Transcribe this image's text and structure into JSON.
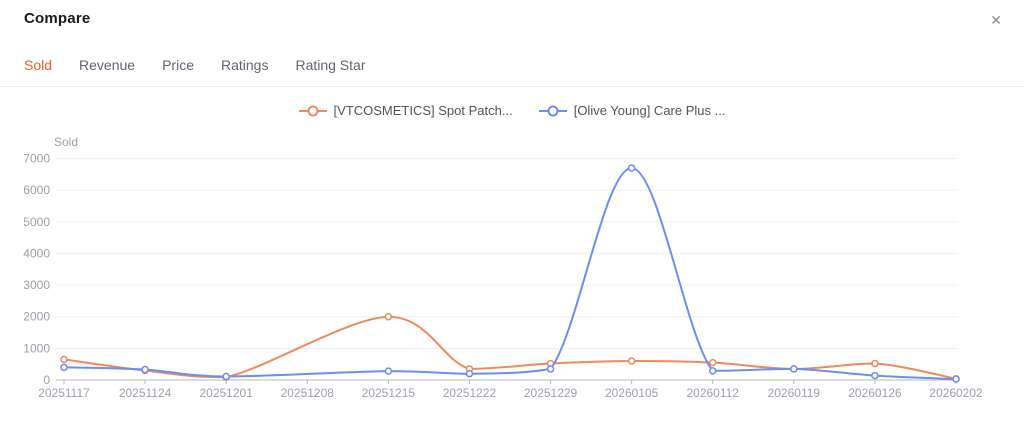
{
  "header": {
    "title": "Compare",
    "close_icon": "✕"
  },
  "tabs": [
    {
      "label": "Sold",
      "active": true
    },
    {
      "label": "Revenue",
      "active": false
    },
    {
      "label": "Price",
      "active": false
    },
    {
      "label": "Ratings",
      "active": false
    },
    {
      "label": "Rating Star",
      "active": false
    }
  ],
  "colors": {
    "accent": "#f2582a",
    "axis_line": "#b4b8bf",
    "grid_line": "#eef1f6",
    "axis_text": "#9aa1ab",
    "legend_text": "#4e545c"
  },
  "chart_data": {
    "type": "line",
    "smooth": true,
    "grid": true,
    "legend_position": "top-center",
    "ylabel": "Sold",
    "ylim": [
      0,
      7000
    ],
    "ytick_interval": 1000,
    "categories": [
      "20251117",
      "20251124",
      "20251201",
      "20251208",
      "20251215",
      "20251222",
      "20251229",
      "20260105",
      "20260112",
      "20260119",
      "20260126",
      "20260202"
    ],
    "series": [
      {
        "name": "[VTCOSMETICS] Spot Patch...",
        "color": "#ee8a5c",
        "values": [
          650,
          300,
          90,
          null,
          2000,
          350,
          520,
          600,
          550,
          350,
          520,
          40
        ]
      },
      {
        "name": "[Olive Young] Care Plus ...",
        "color": "#6c8ef2",
        "values": [
          400,
          330,
          110,
          null,
          280,
          200,
          350,
          6700,
          290,
          350,
          140,
          30
        ]
      }
    ]
  }
}
